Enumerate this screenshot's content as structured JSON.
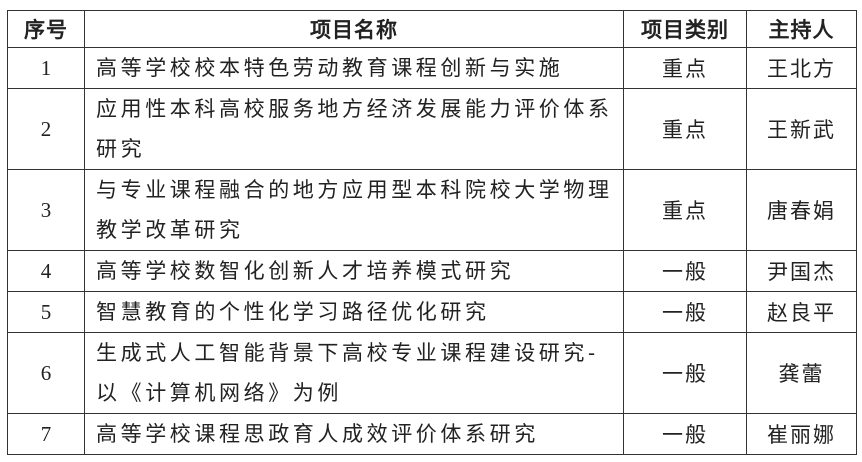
{
  "headers": {
    "no": "序号",
    "name": "项目名称",
    "type": "项目类别",
    "host": "主持人"
  },
  "rows": [
    {
      "no": "1",
      "name": "高等学校校本特色劳动教育课程创新与实施",
      "type": "重点",
      "host": "王北方"
    },
    {
      "no": "2",
      "name": "应用性本科高校服务地方经济发展能力评价体系研究",
      "type": "重点",
      "host": "王新武"
    },
    {
      "no": "3",
      "name": "与专业课程融合的地方应用型本科院校大学物理教学改革研究",
      "type": "重点",
      "host": "唐春娟"
    },
    {
      "no": "4",
      "name": "高等学校数智化创新人才培养模式研究",
      "type": "一般",
      "host": "尹国杰"
    },
    {
      "no": "5",
      "name": "智慧教育的个性化学习路径优化研究",
      "type": "一般",
      "host": "赵良平"
    },
    {
      "no": "6",
      "name": "生成式人工智能背景下高校专业课程建设研究-以《计算机网络》为例",
      "type": "一般",
      "host": "龚蕾"
    },
    {
      "no": "7",
      "name": "高等学校课程思政育人成效评价体系研究",
      "type": "一般",
      "host": "崔丽娜"
    }
  ]
}
